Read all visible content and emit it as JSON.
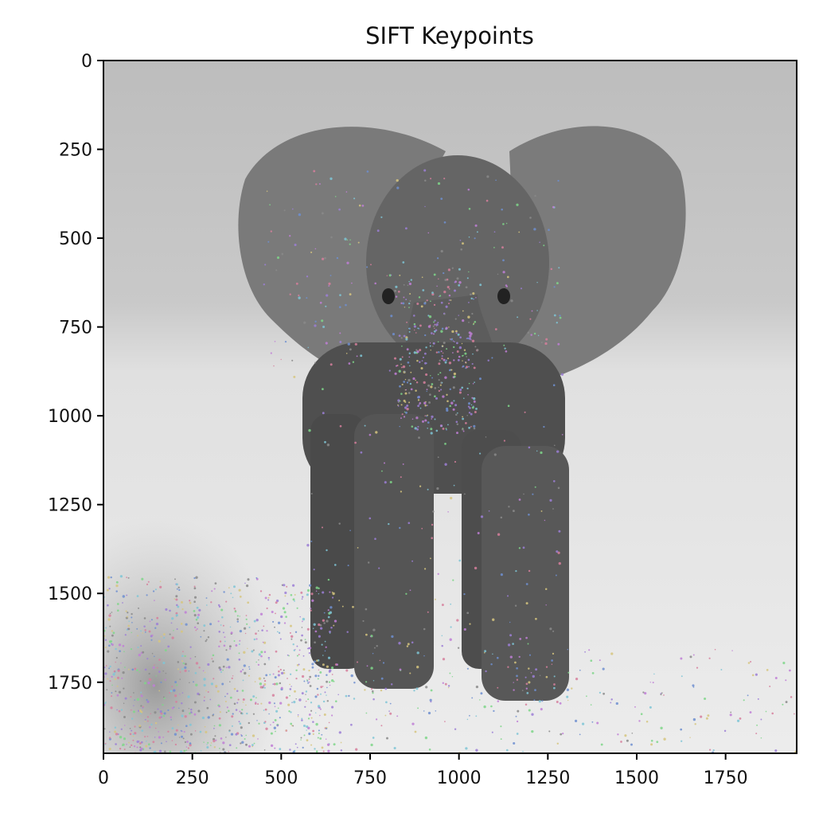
{
  "chart_data": {
    "type": "scatter",
    "title": "SIFT Keypoints",
    "xlabel": "",
    "ylabel": "",
    "xlim": [
      0,
      1950
    ],
    "ylim": [
      1950,
      0
    ],
    "y_axis_inverted": true,
    "grid": false,
    "legend": "none",
    "xticks": [
      0,
      250,
      500,
      750,
      1000,
      1250,
      1500,
      1750
    ],
    "yticks": [
      0,
      250,
      500,
      750,
      1000,
      1250,
      1500,
      1750
    ],
    "background_image": "grayscale photo of a young elephant walking toward the camera on a dirt path, dry grass on the left",
    "keypoint_colors": [
      "#9c7fd6",
      "#7fd68a",
      "#d67f9c",
      "#6f8fd0",
      "#d6c57f",
      "#7fc6d6",
      "#c07fd6",
      "#8a8a8a"
    ],
    "keypoint_regions": [
      {
        "label": "ears and head",
        "x_range": [
          450,
          1300
        ],
        "y_range": [
          300,
          900
        ],
        "density": "medium"
      },
      {
        "label": "trunk",
        "x_range": [
          820,
          1050
        ],
        "y_range": [
          600,
          1050
        ],
        "density": "high"
      },
      {
        "label": "front legs",
        "x_range": [
          570,
          1300
        ],
        "y_range": [
          900,
          1800
        ],
        "density": "medium"
      },
      {
        "label": "grass lower-left",
        "x_range": [
          0,
          650
        ],
        "y_range": [
          1450,
          1950
        ],
        "density": "very high"
      },
      {
        "label": "path foreground",
        "x_range": [
          600,
          1950
        ],
        "y_range": [
          1650,
          1950
        ],
        "density": "medium"
      }
    ]
  }
}
